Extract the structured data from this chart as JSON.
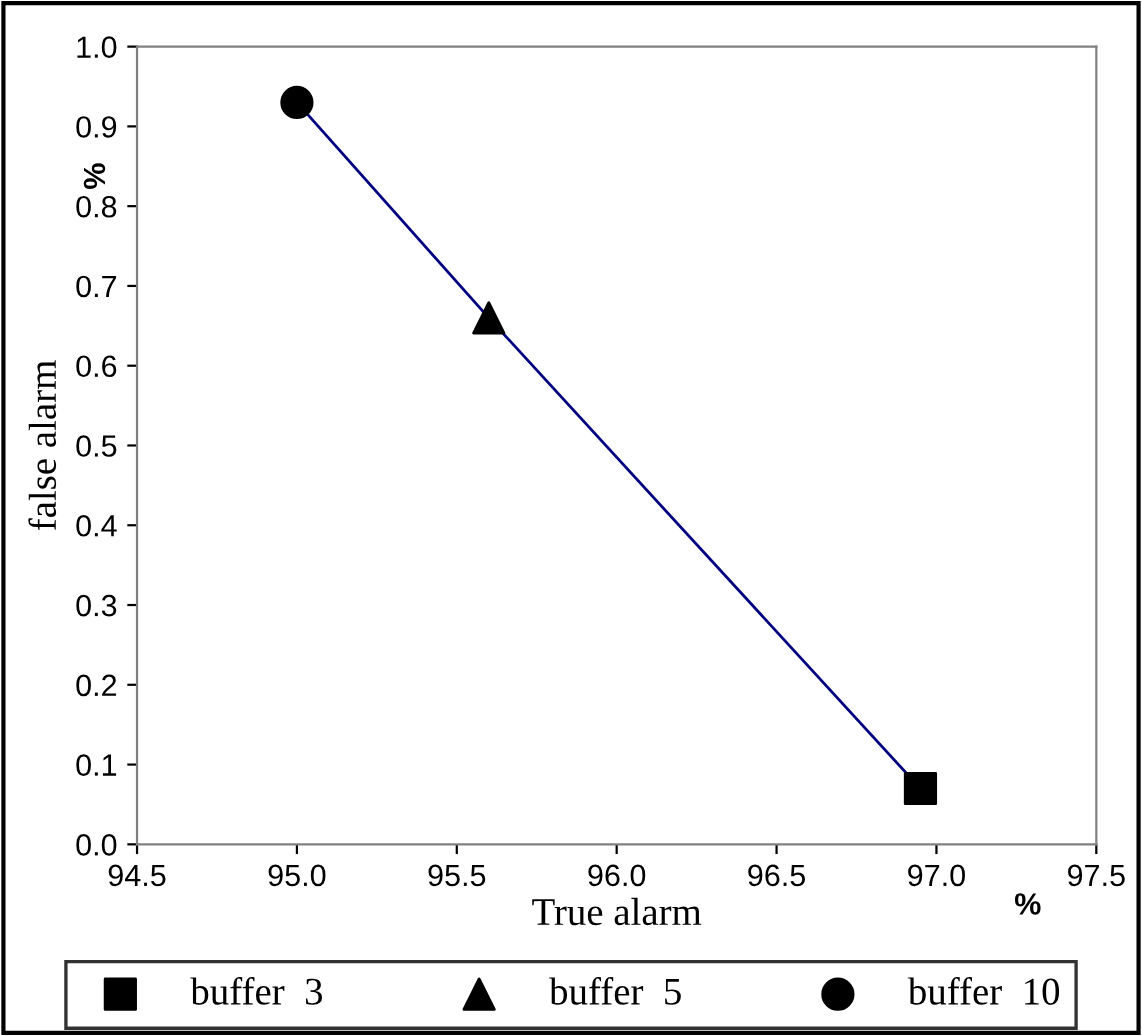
{
  "chart_data": {
    "type": "scatter",
    "xlabel": "True alarm",
    "ylabel": "false alarm",
    "annotations": [
      "%",
      "%"
    ],
    "xlim": [
      94.5,
      97.5
    ],
    "xticks": [
      {
        "value": 94.5,
        "label": "94.5"
      },
      {
        "value": 95.0,
        "label": "95.0"
      },
      {
        "value": 95.5,
        "label": "95.5"
      },
      {
        "value": 96.0,
        "label": "96.0"
      },
      {
        "value": 96.5,
        "label": "96.5"
      },
      {
        "value": 97.0,
        "label": "97.0"
      },
      {
        "value": 97.5,
        "label": "97.5"
      }
    ],
    "ylim": [
      0.0,
      1.0
    ],
    "yticks": [
      {
        "value": 0.0,
        "label": "0.0"
      },
      {
        "value": 0.1,
        "label": "0.1"
      },
      {
        "value": 0.2,
        "label": "0.2"
      },
      {
        "value": 0.3,
        "label": "0.3"
      },
      {
        "value": 0.4,
        "label": "0.4"
      },
      {
        "value": 0.5,
        "label": "0.5"
      },
      {
        "value": 0.6,
        "label": "0.6"
      },
      {
        "value": 0.7,
        "label": "0.7"
      },
      {
        "value": 0.8,
        "label": "0.8"
      },
      {
        "value": 0.9,
        "label": "0.9"
      },
      {
        "value": 1.0,
        "label": "1.0"
      }
    ],
    "grid": false,
    "legend": "bottom",
    "series": [
      {
        "type": "line",
        "color": "#000080",
        "x": [
          95.0,
          95.6,
          96.95
        ],
        "values": [
          0.93,
          0.66,
          0.07
        ],
        "marker": "none",
        "line_style": "solid"
      },
      {
        "name": "buffer  3",
        "color": "#000000",
        "marker": "square",
        "x": [
          96.95
        ],
        "values": [
          0.07
        ]
      },
      {
        "name": "buffer  5",
        "color": "#000000",
        "marker": "triangle",
        "x": [
          95.6
        ],
        "values": [
          0.66
        ]
      },
      {
        "name": "buffer  10",
        "color": "#000000",
        "marker": "circle",
        "x": [
          95.0
        ],
        "values": [
          0.93
        ]
      }
    ]
  }
}
